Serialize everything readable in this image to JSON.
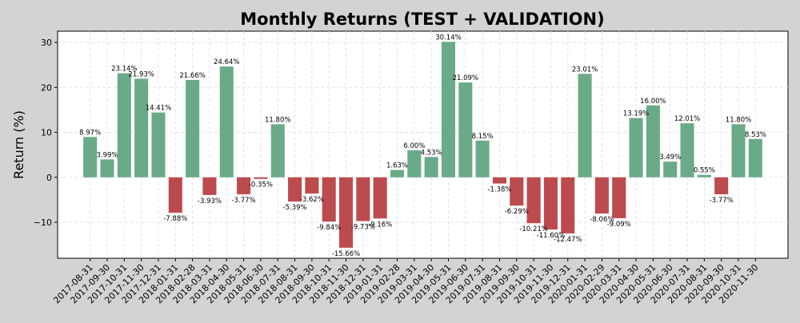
{
  "chart_data": {
    "type": "bar",
    "title": "Monthly Returns (TEST + VALIDATION)",
    "xlabel": "",
    "ylabel": "Return (%)",
    "ylim": [
      -18,
      32.5
    ],
    "yticks": [
      -10,
      0,
      10,
      20,
      30
    ],
    "grid": true,
    "value_suffix": "%",
    "colors": {
      "positive": "#6aab87",
      "negative": "#bc4b4e",
      "background": "#d3d3d3",
      "plot_background": "#ffffff"
    },
    "categories": [
      "2017-08-31",
      "2017-09-30",
      "2017-10-31",
      "2017-11-30",
      "2017-12-31",
      "2018-01-31",
      "2018-02-28",
      "2018-03-31",
      "2018-04-30",
      "2018-05-31",
      "2018-06-30",
      "2018-07-31",
      "2018-08-31",
      "2018-09-30",
      "2018-10-31",
      "2018-11-30",
      "2018-12-31",
      "2019-01-31",
      "2019-02-28",
      "2019-03-31",
      "2019-04-30",
      "2019-05-31",
      "2019-06-30",
      "2019-07-31",
      "2019-08-31",
      "2019-09-30",
      "2019-10-31",
      "2019-11-30",
      "2019-12-31",
      "2020-01-31",
      "2020-02-29",
      "2020-03-31",
      "2020-04-30",
      "2020-05-31",
      "2020-06-30",
      "2020-07-31",
      "2020-08-31",
      "2020-09-30",
      "2020-10-31",
      "2020-11-30"
    ],
    "values": [
      8.97,
      3.99,
      23.14,
      21.93,
      14.41,
      -7.88,
      21.66,
      -3.93,
      24.64,
      -3.77,
      -0.35,
      11.8,
      -5.39,
      -3.62,
      -9.84,
      -15.66,
      -9.73,
      -9.16,
      1.63,
      6.0,
      4.53,
      30.14,
      21.09,
      8.15,
      -1.38,
      -6.29,
      -10.21,
      -11.6,
      -12.47,
      23.01,
      -8.06,
      -9.09,
      13.19,
      16.0,
      3.49,
      12.01,
      0.55,
      -3.77,
      11.8,
      8.53
    ]
  }
}
